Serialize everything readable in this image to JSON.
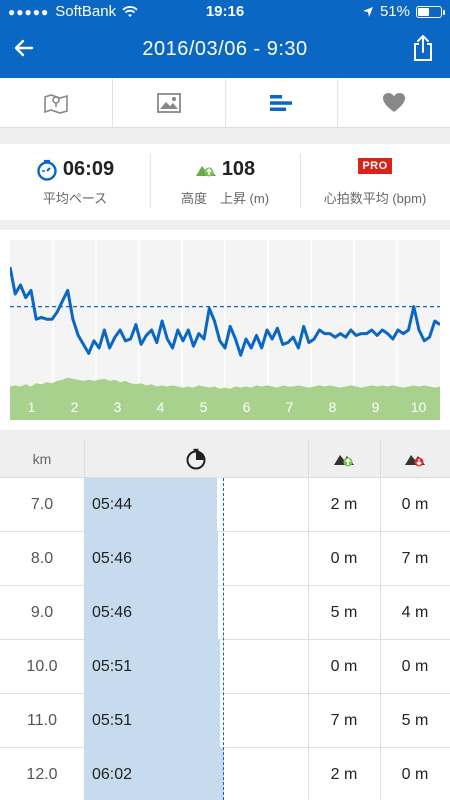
{
  "status_bar": {
    "carrier": "SoftBank",
    "time": "19:16",
    "battery": "51%",
    "battery_level": 0.51
  },
  "header": {
    "title": "2016/03/06 - 9:30"
  },
  "tabs": [
    {
      "icon": "map-icon"
    },
    {
      "icon": "photo-icon"
    },
    {
      "icon": "stats-icon",
      "active": true
    },
    {
      "icon": "heart-icon"
    }
  ],
  "stats": {
    "pace": {
      "value": "06:09",
      "label": "平均ペース"
    },
    "elevation": {
      "value": "108",
      "label": "高度　上昇 (m)"
    },
    "heart_rate": {
      "badge": "PRO",
      "label": "心拍数平均 (bpm)"
    }
  },
  "colors": {
    "accent": "#0a67c3",
    "elevation": "#a8d18d",
    "pace_bar": "#c7dbee",
    "pro": "#d9231d"
  },
  "chart_data": {
    "type": "line",
    "x_tick_labels": [
      "1",
      "2",
      "3",
      "4",
      "5",
      "6",
      "7",
      "8",
      "9",
      "10"
    ],
    "pace_series": [
      0.85,
      0.7,
      0.75,
      0.68,
      0.72,
      0.56,
      0.57,
      0.56,
      0.56,
      0.6,
      0.66,
      0.72,
      0.56,
      0.47,
      0.42,
      0.37,
      0.44,
      0.4,
      0.5,
      0.4,
      0.46,
      0.5,
      0.44,
      0.45,
      0.53,
      0.42,
      0.47,
      0.5,
      0.43,
      0.55,
      0.45,
      0.4,
      0.5,
      0.44,
      0.5,
      0.41,
      0.48,
      0.45,
      0.62,
      0.55,
      0.44,
      0.4,
      0.52,
      0.45,
      0.36,
      0.45,
      0.4,
      0.47,
      0.4,
      0.5,
      0.45,
      0.51,
      0.42,
      0.43,
      0.46,
      0.4,
      0.52,
      0.43,
      0.45,
      0.5,
      0.48,
      0.48,
      0.46,
      0.48,
      0.46,
      0.5,
      0.47,
      0.48,
      0.48,
      0.5,
      0.47,
      0.5,
      0.48,
      0.45,
      0.5,
      0.48,
      0.5,
      0.63,
      0.5,
      0.44,
      0.46,
      0.55,
      0.53
    ],
    "average_pace": 0.63,
    "elevation_series": [
      0.3,
      0.31,
      0.3,
      0.32,
      0.3,
      0.33,
      0.32,
      0.34,
      0.33,
      0.35,
      0.36,
      0.38,
      0.37,
      0.36,
      0.35,
      0.36,
      0.35,
      0.36,
      0.37,
      0.35,
      0.36,
      0.34,
      0.35,
      0.33,
      0.32,
      0.33,
      0.31,
      0.32,
      0.3,
      0.31,
      0.3,
      0.31,
      0.3,
      0.29,
      0.3,
      0.29,
      0.31,
      0.3,
      0.29,
      0.3,
      0.28,
      0.29,
      0.28,
      0.3,
      0.29,
      0.3,
      0.29,
      0.31,
      0.3,
      0.31,
      0.3,
      0.29,
      0.31,
      0.3,
      0.3,
      0.31,
      0.3,
      0.29,
      0.3,
      0.31,
      0.3,
      0.31,
      0.3,
      0.29,
      0.3,
      0.31,
      0.3,
      0.29,
      0.3,
      0.31,
      0.3,
      0.31,
      0.3,
      0.31,
      0.3,
      0.29,
      0.3,
      0.31,
      0.3,
      0.31,
      0.3,
      0.29,
      0.3
    ]
  },
  "table": {
    "headers": {
      "km": "km",
      "pace_icon": "stopwatch-icon",
      "up_icon": "elevation-up-icon",
      "down_icon": "elevation-down-icon"
    },
    "avg_pace_fraction": 0.62,
    "rows": [
      {
        "km": "7.0",
        "pace": "05:44",
        "up": "2 m",
        "down": "0 m",
        "pace_fraction": 0.593
      },
      {
        "km": "8.0",
        "pace": "05:46",
        "up": "0 m",
        "down": "7 m",
        "pace_fraction": 0.597
      },
      {
        "km": "9.0",
        "pace": "05:46",
        "up": "5 m",
        "down": "4 m",
        "pace_fraction": 0.597
      },
      {
        "km": "10.0",
        "pace": "05:51",
        "up": "0 m",
        "down": "0 m",
        "pace_fraction": 0.606
      },
      {
        "km": "11.0",
        "pace": "05:51",
        "up": "7 m",
        "down": "5 m",
        "pace_fraction": 0.606
      },
      {
        "km": "12.0",
        "pace": "06:02",
        "up": "2 m",
        "down": "0 m",
        "pace_fraction": 0.623
      }
    ]
  }
}
